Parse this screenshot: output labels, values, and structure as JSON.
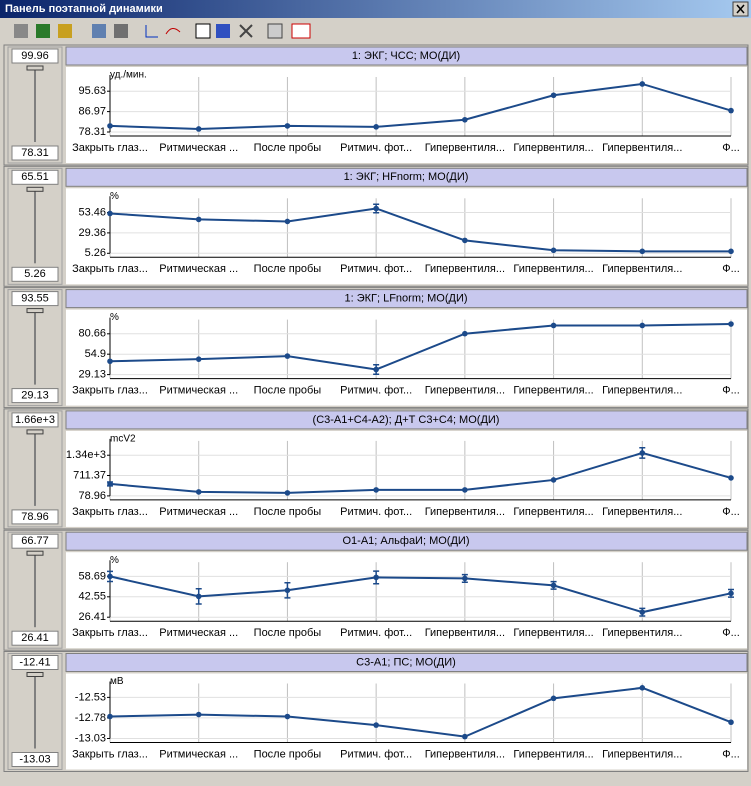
{
  "window": {
    "title": "Панель поэтапной динамики"
  },
  "sliders": [
    {
      "max": "99.96",
      "min": "78.31"
    },
    {
      "max": "65.51",
      "min": "5.26"
    },
    {
      "max": "93.55",
      "min": "29.13"
    },
    {
      "max": "1.66e+3",
      "min": "78.96"
    },
    {
      "max": "66.77",
      "min": "26.41"
    },
    {
      "max": "-12.41",
      "min": "-13.03"
    }
  ],
  "chart_data": [
    {
      "type": "line",
      "title": "1: ЭКГ; ЧСС; МО(ДИ)",
      "y_label": "уд./мин.",
      "categories": [
        "Закрыть глаз...",
        "Ритмическая ...",
        "После пробы",
        "Ритмич. фот...",
        "Гипервентиля...",
        "Гипервентиля...",
        "Гипервентиля...",
        "Ф..."
      ],
      "series": [
        {
          "color": "#1c4a8a",
          "values": [
            80.9,
            79.6,
            80.9,
            80.5,
            83.5,
            93.9,
            98.7,
            87.4
          ],
          "errors": [
            null,
            null,
            null,
            null,
            null,
            null,
            null,
            null
          ]
        }
      ],
      "ylim": [
        78.31,
        99.96
      ],
      "yticks": [
        78.31,
        86.97,
        95.63
      ],
      "grid": true
    },
    {
      "type": "line",
      "title": "1: ЭКГ; HFnorm; МО(ДИ)",
      "y_label": "%",
      "categories": [
        "Закрыть глаз...",
        "Ритмическая ...",
        "После пробы",
        "Ритмич. фот...",
        "Гипервентиля...",
        "Гипервентиля...",
        "Гипервентиля...",
        "Ф..."
      ],
      "series": [
        {
          "color": "#1c4a8a",
          "values": [
            52.3,
            45.3,
            42.9,
            58.2,
            20.5,
            8.8,
            7.6,
            7.6
          ],
          "errors": [
            null,
            null,
            null,
            5,
            null,
            null,
            null,
            null
          ]
        }
      ],
      "ylim": [
        5.26,
        65.51
      ],
      "yticks": [
        5.26,
        29.36,
        53.46
      ],
      "grid": true
    },
    {
      "type": "line",
      "title": "1: ЭКГ; LFnorm; МО(ДИ)",
      "y_label": "%",
      "categories": [
        "Закрыть глаз...",
        "Ритмическая ...",
        "После пробы",
        "Ритмич. фот...",
        "Гипервентиля...",
        "Гипервентиля...",
        "Гипервентиля...",
        "Ф..."
      ],
      "series": [
        {
          "color": "#1c4a8a",
          "values": [
            46,
            48.6,
            52.5,
            35.6,
            80.8,
            91.2,
            91.2,
            93
          ],
          "errors": [
            null,
            null,
            null,
            6,
            null,
            null,
            null,
            null
          ]
        }
      ],
      "ylim": [
        29.13,
        93.55
      ],
      "yticks": [
        29.13,
        54.9,
        80.66
      ],
      "grid": true
    },
    {
      "type": "line",
      "title": "(C3-A1+C4-A2); Д+Т C3+C4; МО(ДИ)",
      "y_label": "mcV2",
      "categories": [
        "Закрыть глаз...",
        "Ритмическая ...",
        "После пробы",
        "Ритмич. фот...",
        "Гипервентиля...",
        "Гипервентиля...",
        "Гипервентиля...",
        "Ф..."
      ],
      "series": [
        {
          "color": "#1c4a8a",
          "values": [
            450,
            203,
            172,
            265,
            265,
            574,
            1410,
            636
          ],
          "errors": [
            60,
            null,
            null,
            null,
            null,
            null,
            160,
            null
          ]
        }
      ],
      "ylim": [
        78.96,
        1660
      ],
      "yticks": [
        78.96,
        711.37,
        {
          "value": 1340,
          "label": "1.34e+3"
        }
      ],
      "grid": true
    },
    {
      "type": "line",
      "title": "O1-A1; АльфаИ; МО(ДИ)",
      "y_label": "%",
      "categories": [
        "Закрыть глаз...",
        "Ритмическая ...",
        "После пробы",
        "Ритмич. фот...",
        "Гипервентиля...",
        "Гипервентиля...",
        "Гипервентиля...",
        "Ф..."
      ],
      "series": [
        {
          "color": "#1c4a8a",
          "values": [
            58.7,
            42.9,
            47.7,
            57.9,
            57.1,
            51.6,
            30.4,
            45.3
          ],
          "errors": [
            4,
            6,
            6,
            5,
            3,
            3,
            3,
            3
          ]
        }
      ],
      "ylim": [
        26.41,
        66.77
      ],
      "yticks": [
        26.41,
        42.55,
        58.69
      ],
      "grid": true
    },
    {
      "type": "line",
      "title": "C3-A1; ПС; МО(ДИ)",
      "y_label": "мВ",
      "categories": [
        "Закрыть глаз...",
        "Ритмическая ...",
        "После пробы",
        "Ритмич. фот...",
        "Гипервентиля...",
        "Гипервентиля...",
        "Гипервентиля...",
        "Ф..."
      ],
      "series": [
        {
          "color": "#1c4a8a",
          "values": [
            -12.763,
            -12.739,
            -12.763,
            -12.867,
            -13.007,
            -12.542,
            -12.414,
            -12.832
          ],
          "errors": [
            null,
            null,
            null,
            null,
            null,
            null,
            null,
            null
          ]
        }
      ],
      "ylim": [
        -13.03,
        -12.41
      ],
      "yticks": [
        -13.03,
        -12.78,
        -12.53
      ],
      "grid": true
    }
  ]
}
